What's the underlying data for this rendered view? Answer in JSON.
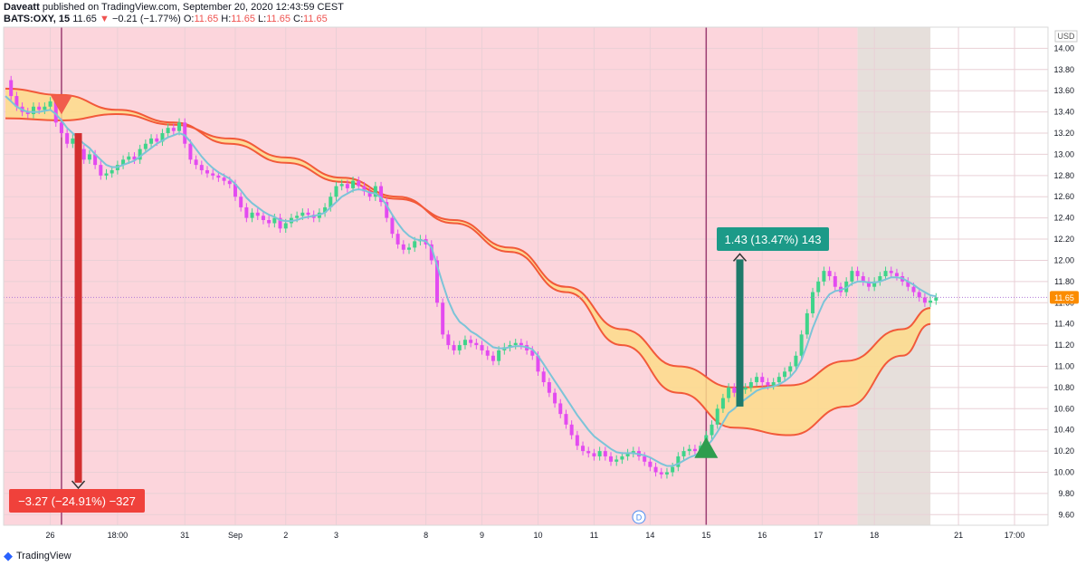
{
  "header": {
    "author": "Daveatt",
    "published": "published on TradingView.com, September 20, 2020 12:43:59 CEST"
  },
  "quote": {
    "symbol": "BATS:OXY, 15",
    "last": "11.65",
    "arrow": "▼",
    "change": "−0.21 (−1.77%)",
    "o_label": "O:",
    "o": "11.65",
    "h_label": "H:",
    "h": "11.65",
    "l_label": "L:",
    "l": "11.65",
    "c_label": "C:",
    "c": "11.65"
  },
  "footer": {
    "brand": "TradingView",
    "logo_icon": "tradingview-logo-icon"
  },
  "colors": {
    "bear_bg": "#fcd5dc",
    "neutral_bg": "#e6dfdb",
    "candle_bear": "#e34bf0",
    "candle_bull": "#3fd48a",
    "ma_fast": "#7cc4d8",
    "ribbon_fill": "#fddc8a",
    "ribbon_line": "#f2593a",
    "short_arrow": "#d32f2f",
    "long_arrow": "#1e7a6a",
    "short_label_bg": "#f0413b",
    "long_label_bg": "#1c9a88",
    "price_label_bg": "#fb8c00"
  },
  "chart_data": {
    "type": "line",
    "title": "",
    "ylim": [
      9.5,
      14.2
    ],
    "y_ticks": [
      "14.00",
      "13.80",
      "13.60",
      "13.40",
      "13.20",
      "13.00",
      "12.80",
      "12.60",
      "12.40",
      "12.20",
      "12.00",
      "11.80",
      "11.60",
      "11.40",
      "11.20",
      "11.00",
      "10.80",
      "10.60",
      "10.40",
      "10.20",
      "10.00",
      "9.80",
      "9.60"
    ],
    "currency": "USD",
    "x_ticks": [
      "26",
      "18:00",
      "31",
      "Sep",
      "2",
      "3",
      "8",
      "9",
      "10",
      "11",
      "14",
      "15",
      "16",
      "17",
      "18",
      "21",
      "17:00"
    ],
    "x_tick_idx": [
      8,
      20,
      32,
      41,
      50,
      59,
      75,
      85,
      95,
      105,
      115,
      125,
      135,
      145,
      155,
      170,
      180
    ],
    "x_max": 185,
    "last_idx": 165,
    "bg_bear_end": 152,
    "bg_neutral_end": 165,
    "price": [
      13.7,
      13.55,
      13.45,
      13.4,
      13.38,
      13.45,
      13.42,
      13.45,
      13.5,
      13.3,
      13.2,
      13.1,
      13.15,
      13.05,
      12.95,
      13.0,
      12.9,
      12.8,
      12.82,
      12.85,
      12.9,
      12.95,
      12.98,
      12.95,
      13.05,
      13.1,
      13.15,
      13.12,
      13.2,
      13.25,
      13.22,
      13.3,
      13.1,
      12.95,
      12.9,
      12.85,
      12.82,
      12.8,
      12.78,
      12.75,
      12.72,
      12.6,
      12.5,
      12.4,
      12.45,
      12.42,
      12.38,
      12.35,
      12.4,
      12.3,
      12.35,
      12.4,
      12.42,
      12.45,
      12.43,
      12.4,
      12.45,
      12.5,
      12.6,
      12.7,
      12.72,
      12.68,
      12.75,
      12.7,
      12.65,
      12.6,
      12.7,
      12.55,
      12.4,
      12.25,
      12.15,
      12.1,
      12.12,
      12.18,
      12.2,
      12.15,
      12.0,
      11.6,
      11.3,
      11.2,
      11.15,
      11.2,
      11.25,
      11.22,
      11.2,
      11.15,
      11.1,
      11.05,
      11.15,
      11.18,
      11.2,
      11.22,
      11.2,
      11.15,
      11.1,
      10.95,
      10.85,
      10.75,
      10.65,
      10.55,
      10.45,
      10.35,
      10.25,
      10.2,
      10.18,
      10.15,
      10.2,
      10.15,
      10.1,
      10.12,
      10.15,
      10.18,
      10.2,
      10.15,
      10.1,
      10.05,
      10.0,
      9.98,
      10.0,
      10.05,
      10.15,
      10.2,
      10.22,
      10.2,
      10.25,
      10.35,
      10.45,
      10.6,
      10.7,
      10.8,
      10.75,
      10.78,
      10.8,
      10.85,
      10.9,
      10.85,
      10.82,
      10.85,
      10.9,
      10.95,
      11.0,
      11.1,
      11.3,
      11.5,
      11.7,
      11.8,
      11.9,
      11.85,
      11.75,
      11.7,
      11.8,
      11.9,
      11.85,
      11.8,
      11.75,
      11.8,
      11.85,
      11.9,
      11.88,
      11.85,
      11.8,
      11.75,
      11.7,
      11.65,
      11.6,
      11.62,
      11.65
    ],
    "ma_fast": [
      13.55,
      13.5,
      13.45,
      13.42,
      13.4,
      13.4,
      13.4,
      13.41,
      13.42,
      13.38,
      13.32,
      13.25,
      13.2,
      13.15,
      13.1,
      13.06,
      13.0,
      12.95,
      12.9,
      12.88,
      12.88,
      12.9,
      12.92,
      12.94,
      12.98,
      13.02,
      13.06,
      13.1,
      13.13,
      13.16,
      13.18,
      13.2,
      13.18,
      13.12,
      13.05,
      12.98,
      12.92,
      12.87,
      12.83,
      12.8,
      12.77,
      12.72,
      12.66,
      12.59,
      12.54,
      12.5,
      12.46,
      12.43,
      12.41,
      12.38,
      12.37,
      12.37,
      12.38,
      12.4,
      12.41,
      12.42,
      12.43,
      12.45,
      12.5,
      12.55,
      12.6,
      12.63,
      12.66,
      12.67,
      12.66,
      12.64,
      12.63,
      12.59,
      12.52,
      12.43,
      12.35,
      12.28,
      12.23,
      12.2,
      12.19,
      12.18,
      12.12,
      11.95,
      11.78,
      11.62,
      11.5,
      11.42,
      11.38,
      11.33,
      11.3,
      11.26,
      11.22,
      11.18,
      11.17,
      11.17,
      11.18,
      11.19,
      11.19,
      11.18,
      11.16,
      11.1,
      11.02,
      10.94,
      10.86,
      10.78,
      10.7,
      10.62,
      10.54,
      10.47,
      10.4,
      10.34,
      10.3,
      10.26,
      10.22,
      10.19,
      10.18,
      10.18,
      10.18,
      10.17,
      10.16,
      10.14,
      10.11,
      10.08,
      10.06,
      10.06,
      10.08,
      10.11,
      10.14,
      10.16,
      10.19,
      10.24,
      10.3,
      10.38,
      10.47,
      10.56,
      10.6,
      10.65,
      10.69,
      10.73,
      10.77,
      10.79,
      10.8,
      10.81,
      10.83,
      10.86,
      10.9,
      10.96,
      11.06,
      11.2,
      11.36,
      11.49,
      11.61,
      11.68,
      11.71,
      11.72,
      11.74,
      11.78,
      11.8,
      11.8,
      11.79,
      11.79,
      11.8,
      11.82,
      11.84,
      11.84,
      11.83,
      11.8,
      11.77,
      11.73,
      11.7,
      11.67,
      11.66
    ],
    "ribbon_upper_x": [
      0,
      10,
      20,
      30,
      40,
      50,
      60,
      70,
      80,
      90,
      100,
      110,
      120,
      130,
      140,
      150,
      160,
      165
    ],
    "ribbon_upper": [
      13.62,
      13.56,
      13.42,
      13.3,
      13.1,
      12.92,
      12.74,
      12.58,
      12.38,
      12.12,
      11.75,
      11.35,
      11.0,
      10.8,
      10.82,
      11.05,
      11.35,
      11.55
    ],
    "ribbon_lower": [
      13.34,
      13.32,
      13.38,
      13.28,
      13.15,
      12.97,
      12.78,
      12.6,
      12.35,
      12.08,
      11.7,
      11.2,
      10.75,
      10.42,
      10.35,
      10.62,
      11.1,
      11.4
    ],
    "current_price": "11.65",
    "signals": [
      {
        "type": "sell",
        "idx": 10,
        "price": 13.48
      },
      {
        "type": "buy",
        "idx": 125,
        "price": 10.22
      }
    ],
    "vlines": [
      10,
      125
    ],
    "short_trade": {
      "idx": 13,
      "from": 13.2,
      "to": 9.85,
      "label": "−3.27 (−24.91%) −327"
    },
    "long_trade": {
      "idx": 131,
      "from": 10.62,
      "to": 12.06,
      "label": "1.43 (13.47%) 143"
    },
    "d_marker": "D",
    "d_marker_idx": 113
  }
}
